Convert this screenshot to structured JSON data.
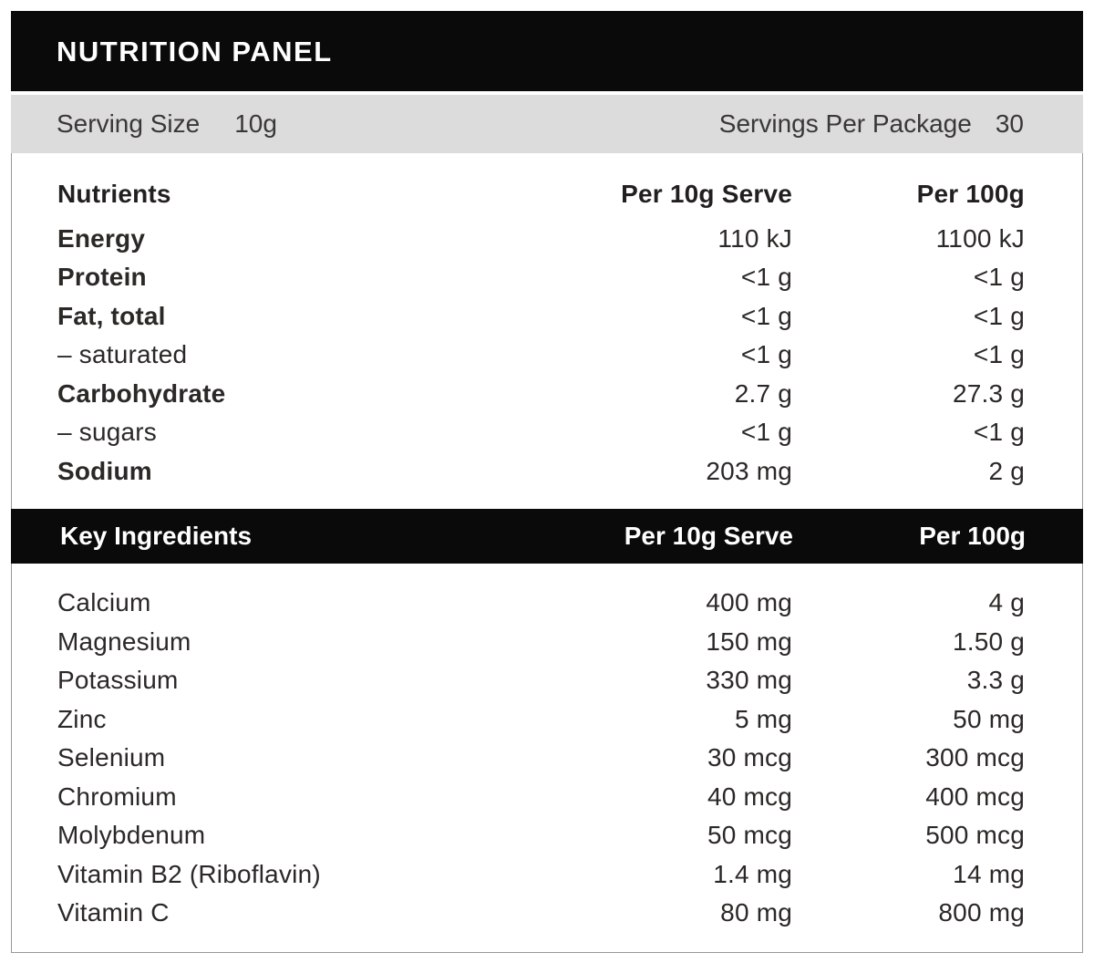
{
  "panel": {
    "title": "NUTRITION PANEL",
    "serving_bar": {
      "serving_size_label": "Serving Size",
      "serving_size_value": "10g",
      "servings_per_package_label": "Servings Per Package",
      "servings_per_package_value": "30"
    },
    "nutrients_section": {
      "header": {
        "name": "Nutrients",
        "per_serve": "Per 10g Serve",
        "per_100g": "Per 100g"
      },
      "rows": [
        {
          "name": "Energy",
          "per_serve": "110 kJ",
          "per_100g": "1100 kJ",
          "emphasis": true
        },
        {
          "name": "Protein",
          "per_serve": "<1 g",
          "per_100g": "<1 g",
          "emphasis": true
        },
        {
          "name": "Fat, total",
          "per_serve": "<1 g",
          "per_100g": "<1 g",
          "emphasis": true
        },
        {
          "name": "– saturated",
          "per_serve": "<1 g",
          "per_100g": "<1 g",
          "emphasis": false
        },
        {
          "name": "Carbohydrate",
          "per_serve": "2.7 g",
          "per_100g": "27.3 g",
          "emphasis": true
        },
        {
          "name": "– sugars",
          "per_serve": "<1 g",
          "per_100g": "<1 g",
          "emphasis": false
        },
        {
          "name": "Sodium",
          "per_serve": "203 mg",
          "per_100g": "2 g",
          "emphasis": true
        }
      ]
    },
    "key_ingredients_section": {
      "header": {
        "name": "Key Ingredients",
        "per_serve": "Per 10g Serve",
        "per_100g": "Per 100g"
      },
      "rows": [
        {
          "name": "Calcium",
          "per_serve": "400 mg",
          "per_100g": "4 g",
          "emphasis": false
        },
        {
          "name": "Magnesium",
          "per_serve": "150 mg",
          "per_100g": "1.50 g",
          "emphasis": false
        },
        {
          "name": "Potassium",
          "per_serve": "330 mg",
          "per_100g": "3.3 g",
          "emphasis": false
        },
        {
          "name": "Zinc",
          "per_serve": "5 mg",
          "per_100g": "50 mg",
          "emphasis": false
        },
        {
          "name": "Selenium",
          "per_serve": "30 mcg",
          "per_100g": "300 mcg",
          "emphasis": false
        },
        {
          "name": "Chromium",
          "per_serve": "40 mcg",
          "per_100g": "400 mcg",
          "emphasis": false
        },
        {
          "name": "Molybdenum",
          "per_serve": "50 mcg",
          "per_100g": "500 mcg",
          "emphasis": false
        },
        {
          "name": "Vitamin B2 (Riboflavin)",
          "per_serve": "1.4 mg",
          "per_100g": "14 mg",
          "emphasis": false
        },
        {
          "name": "Vitamin C",
          "per_serve": "80 mg",
          "per_100g": "800 mg",
          "emphasis": false
        }
      ]
    },
    "colors": {
      "header_bar": "#0a0a0a",
      "serving_bar": "#dcdcdc",
      "text": "#2b2826",
      "border": "#999999"
    }
  }
}
